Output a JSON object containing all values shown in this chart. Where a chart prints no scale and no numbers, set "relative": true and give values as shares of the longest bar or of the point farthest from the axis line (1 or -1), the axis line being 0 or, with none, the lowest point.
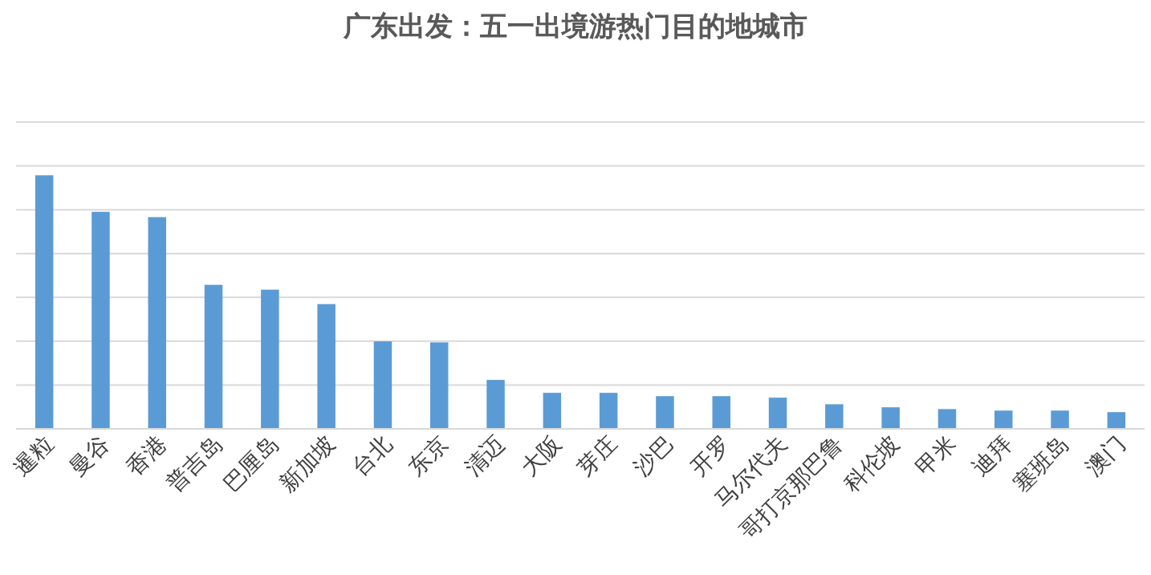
{
  "chart_data": {
    "type": "bar",
    "title": "广东出发：五一出境游热门目的地城市",
    "relative": true,
    "grid": true,
    "categories": [
      "暹粒",
      "曼谷",
      "香港",
      "普吉岛",
      "巴厘岛",
      "新加坡",
      "台北",
      "东京",
      "清迈",
      "大阪",
      "芽庄",
      "沙巴",
      "开罗",
      "马尔代夫",
      "哥打京那巴鲁",
      "科伦坡",
      "甲米",
      "迪拜",
      "塞班岛",
      "澳门"
    ],
    "values": [
      1,
      0.856,
      0.835,
      0.568,
      0.549,
      0.492,
      0.345,
      0.341,
      0.193,
      0.142,
      0.142,
      0.129,
      0.129,
      0.123,
      0.097,
      0.085,
      0.078,
      0.072,
      0.072,
      0.066
    ],
    "color": "#5b9bd5"
  }
}
